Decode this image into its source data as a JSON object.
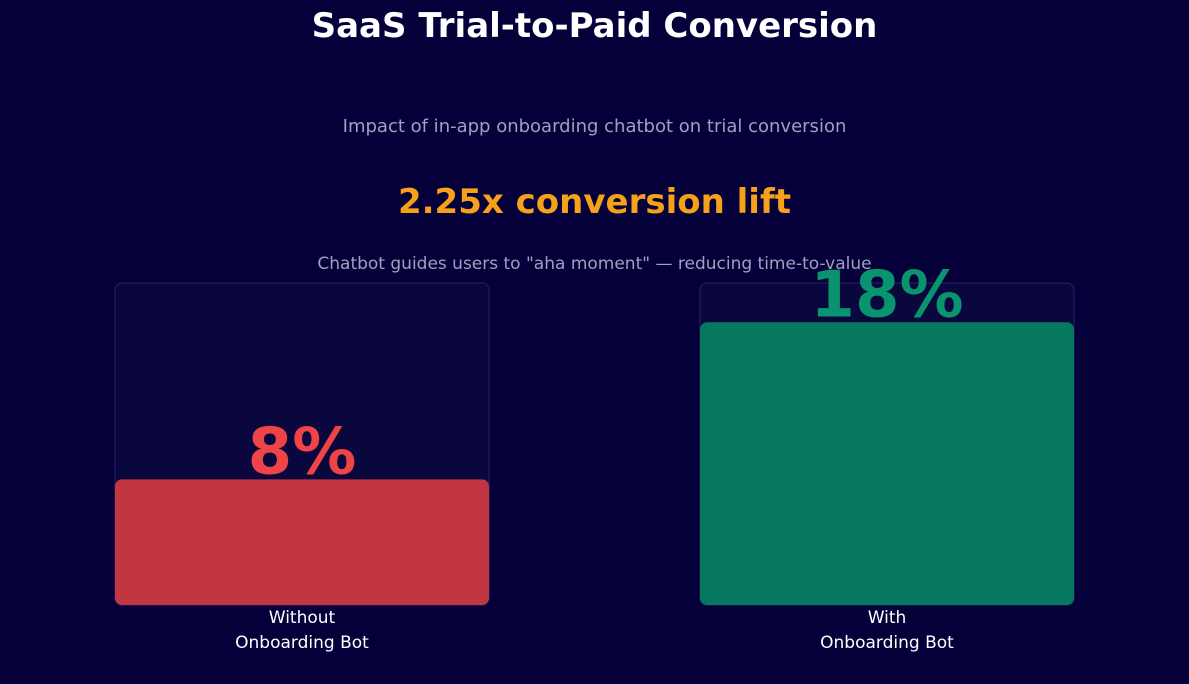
{
  "chart_data": {
    "type": "bar",
    "title": "SaaS Trial-to-Paid Conversion",
    "subtitle": "Impact of in-app onboarding chatbot on trial conversion",
    "headline": "2.25x conversion lift",
    "annotation": "Chatbot guides users to \"aha moment\" — reducing time-to-value",
    "categories": [
      [
        "Without",
        "Onboarding Bot"
      ],
      [
        "With",
        "Onboarding Bot"
      ]
    ],
    "values": [
      8,
      18
    ],
    "value_labels": [
      "8%",
      "18%"
    ],
    "ylim": [
      0,
      20.5
    ],
    "grid": false,
    "colors": {
      "bars": [
        "#c13640",
        "#067860"
      ],
      "value_labels": [
        "#ee4447",
        "#08946e"
      ],
      "track": "#0a063e",
      "track_border": "#1e1a58",
      "title": "#ffffff",
      "subtitle": "#a39fc0",
      "headline": "#f5a11a",
      "background": "#06003a"
    }
  }
}
